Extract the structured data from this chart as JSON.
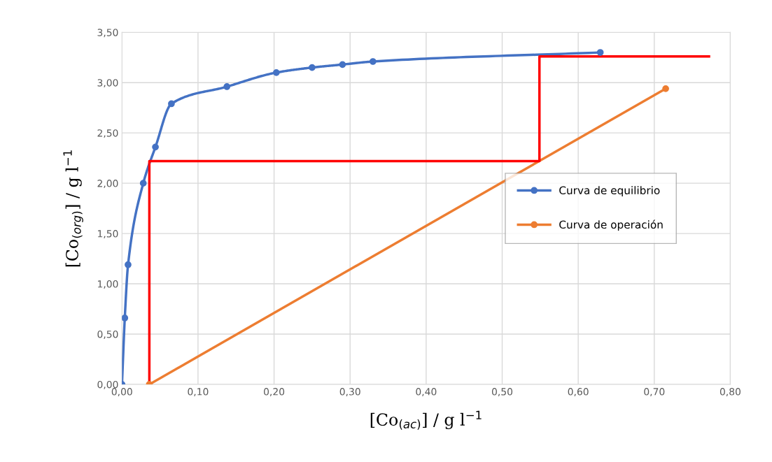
{
  "chart_data": {
    "type": "line",
    "xlabel": "[Co$_{(ac)}$] / g l$^{−1}$",
    "ylabel": "[Co$_{(org)}$] / g l$^{−1}$",
    "series": [
      {
        "name": "Curva de equilibrio",
        "color": "#4472c4",
        "marker": "circle",
        "x": [
          0,
          0.0037,
          0.008,
          0.028,
          0.044,
          0.065,
          0.138,
          0.203,
          0.25,
          0.29,
          0.33,
          0.629
        ],
        "values": [
          0,
          0.66,
          1.19,
          2.0,
          2.36,
          2.79,
          2.96,
          3.1,
          3.15,
          3.18,
          3.21,
          3.3
        ]
      },
      {
        "name": "Curva de operación",
        "color": "#ed7d31",
        "marker": "circle",
        "x": [
          0.036,
          0.715
        ],
        "values": [
          0,
          2.94
        ]
      },
      {
        "color": "#ff0000",
        "marker": "none",
        "x": [
          0.036,
          0.036,
          0.549,
          0.549,
          0.772
        ],
        "values": [
          0,
          2.22,
          2.22,
          3.26,
          3.26
        ]
      }
    ],
    "xlim": [
      0,
      0.8
    ],
    "ylim": [
      0,
      3.5
    ],
    "xticks": [
      {
        "value": 0,
        "label": "0,00"
      },
      {
        "value": 0.1,
        "label": "0,10"
      },
      {
        "value": 0.2,
        "label": "0,20"
      },
      {
        "value": 0.3,
        "label": "0,30"
      },
      {
        "value": 0.4,
        "label": "0,40"
      },
      {
        "value": 0.5,
        "label": "0,50"
      },
      {
        "value": 0.6,
        "label": "0,60"
      },
      {
        "value": 0.7,
        "label": "0,70"
      },
      {
        "value": 0.8,
        "label": "0,80"
      }
    ],
    "yticks": [
      {
        "value": 0,
        "label": "0,00"
      },
      {
        "value": 0.5,
        "label": "0,50"
      },
      {
        "value": 1,
        "label": "1,00"
      },
      {
        "value": 1.5,
        "label": "1,50"
      },
      {
        "value": 2,
        "label": "2,00"
      },
      {
        "value": 2.5,
        "label": "2,50"
      },
      {
        "value": 3,
        "label": "3,00"
      },
      {
        "value": 3.5,
        "label": "3,50"
      }
    ],
    "grid": true,
    "legend": "center right",
    "line_style": "solid"
  }
}
